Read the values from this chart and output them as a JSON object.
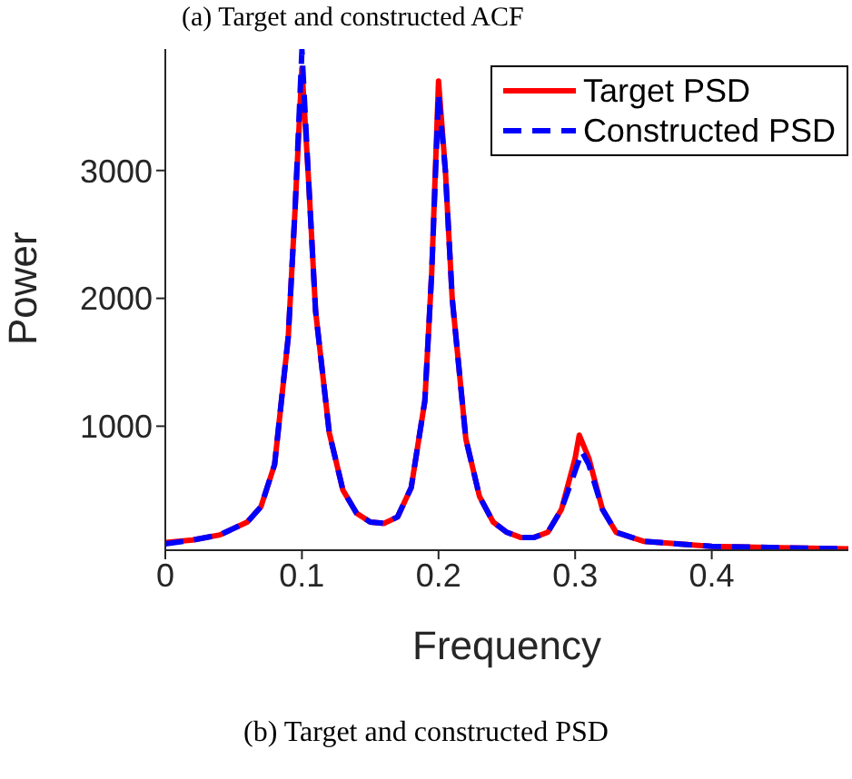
{
  "chart_data": {
    "type": "line",
    "title": "(b) Target and constructed PSD",
    "xlabel": "Frequency",
    "ylabel": "Power",
    "annotations": [
      "(a) Target and constructed ACF"
    ],
    "xlim": [
      0,
      0.5
    ],
    "xticks": [
      0,
      0.1,
      0.2,
      0.3,
      0.4
    ],
    "ylim": [
      30,
      3950
    ],
    "yticks": [
      1000,
      2000,
      3000
    ],
    "grid": false,
    "legend": "top right",
    "marker": "none",
    "series": [
      {
        "name": "Target PSD",
        "color": "#ff0000",
        "line_style": "solid",
        "x": [
          0,
          0.02,
          0.04,
          0.06,
          0.07,
          0.08,
          0.09,
          0.095,
          0.1,
          0.105,
          0.11,
          0.12,
          0.13,
          0.14,
          0.15,
          0.16,
          0.17,
          0.18,
          0.19,
          0.195,
          0.2,
          0.205,
          0.21,
          0.22,
          0.23,
          0.24,
          0.25,
          0.26,
          0.27,
          0.28,
          0.29,
          0.3,
          0.303,
          0.31,
          0.32,
          0.33,
          0.35,
          0.4,
          0.45,
          0.5
        ],
        "values": [
          90,
          110,
          150,
          250,
          370,
          700,
          1700,
          2700,
          3800,
          2900,
          1900,
          950,
          500,
          320,
          250,
          240,
          290,
          520,
          1200,
          2200,
          3700,
          3000,
          2000,
          900,
          450,
          250,
          170,
          130,
          130,
          170,
          350,
          750,
          930,
          750,
          350,
          170,
          100,
          60,
          50,
          40
        ]
      },
      {
        "name": "Constructed PSD",
        "color": "#0000ff",
        "line_style": "dashed",
        "x": [
          0,
          0.02,
          0.04,
          0.06,
          0.07,
          0.08,
          0.09,
          0.095,
          0.1,
          0.105,
          0.11,
          0.12,
          0.13,
          0.14,
          0.15,
          0.16,
          0.17,
          0.18,
          0.19,
          0.195,
          0.2,
          0.205,
          0.21,
          0.22,
          0.23,
          0.24,
          0.25,
          0.26,
          0.27,
          0.28,
          0.29,
          0.3,
          0.305,
          0.31,
          0.32,
          0.33,
          0.35,
          0.4,
          0.45,
          0.5
        ],
        "values": [
          80,
          110,
          150,
          250,
          370,
          700,
          1700,
          2700,
          3940,
          2900,
          1900,
          950,
          500,
          320,
          250,
          240,
          290,
          520,
          1200,
          2200,
          3600,
          3000,
          2000,
          900,
          450,
          250,
          170,
          130,
          130,
          170,
          350,
          650,
          800,
          700,
          350,
          170,
          100,
          60,
          50,
          40
        ]
      }
    ]
  }
}
